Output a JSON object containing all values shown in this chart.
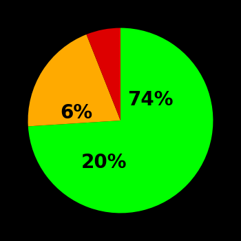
{
  "slices": [
    74,
    20,
    6
  ],
  "colors": [
    "#00ff00",
    "#ffaa00",
    "#dd0000"
  ],
  "labels": [
    "74%",
    "20%",
    "6%"
  ],
  "background_color": "#000000",
  "startangle": 90,
  "figsize": [
    3.5,
    3.5
  ],
  "dpi": 100,
  "label_fontsize": 20,
  "label_fontweight": "bold"
}
